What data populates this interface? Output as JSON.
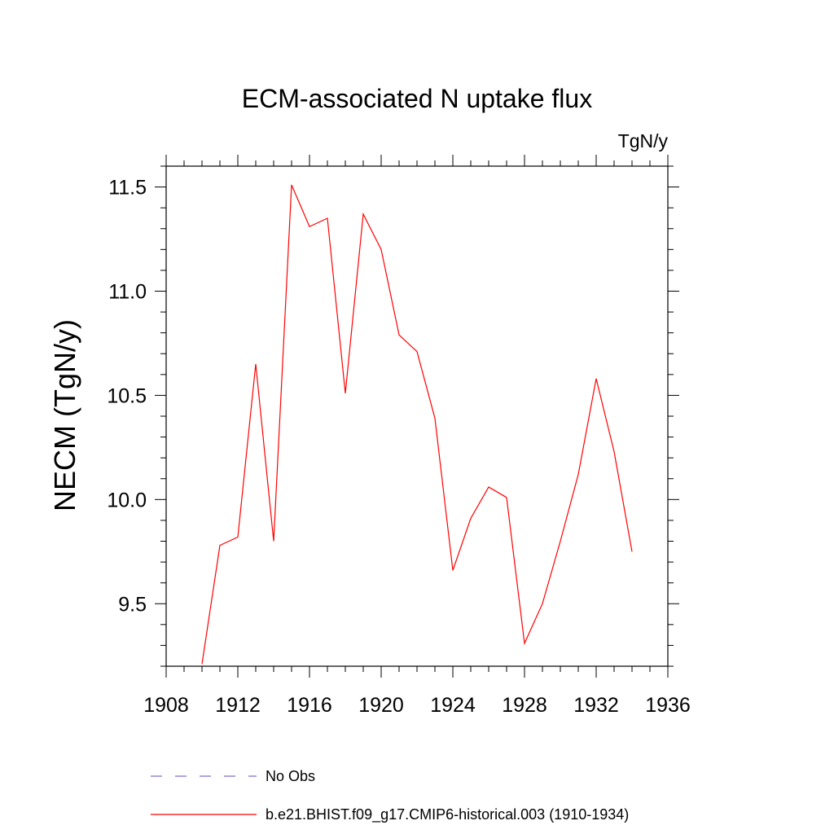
{
  "chart_data": {
    "type": "line",
    "title": "ECM-associated N uptake flux",
    "units_label": "TgN/y",
    "ylabel": "NECM  (TgN/y)",
    "xlabel": "",
    "xlim": [
      1908,
      1936
    ],
    "ylim": [
      9.2,
      11.6
    ],
    "x_ticks": [
      1908,
      1912,
      1916,
      1920,
      1924,
      1928,
      1932,
      1936
    ],
    "y_ticks": [
      9.5,
      10.0,
      10.5,
      11.0,
      11.5
    ],
    "y_tick_labels": [
      "9.5",
      "10.0",
      "10.5",
      "11.0",
      "11.5"
    ],
    "series": [
      {
        "name": "b.e21.BHIST.f09_g17.CMIP6-historical.003 (1910-1934)",
        "color": "#ff0000",
        "style": "solid",
        "x": [
          1910,
          1911,
          1912,
          1913,
          1914,
          1915,
          1916,
          1917,
          1918,
          1919,
          1920,
          1921,
          1922,
          1923,
          1924,
          1925,
          1926,
          1927,
          1928,
          1929,
          1930,
          1931,
          1932,
          1933,
          1934
        ],
        "values": [
          9.21,
          9.78,
          9.82,
          10.65,
          9.8,
          11.51,
          11.31,
          11.35,
          10.51,
          11.37,
          11.2,
          10.79,
          10.71,
          10.39,
          9.66,
          9.91,
          10.06,
          10.01,
          9.31,
          9.5,
          9.8,
          10.12,
          10.58,
          10.23,
          9.75
        ]
      }
    ],
    "legend": [
      {
        "label": "No Obs",
        "color": "#7b72c8",
        "style": "dashed"
      },
      {
        "label": "b.e21.BHIST.f09_g17.CMIP6-historical.003 (1910-1934)",
        "color": "#ff0000",
        "style": "solid"
      }
    ],
    "legend_position": "bottom"
  }
}
